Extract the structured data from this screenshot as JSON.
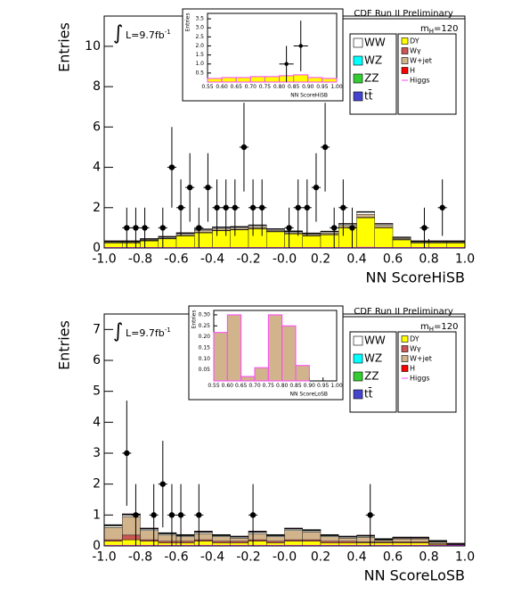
{
  "chart_data": [
    {
      "type": "histogram",
      "header": "CDF Run II Preliminary",
      "mass_label": {
        "symbol": "m",
        "subscript": "H",
        "text": "=120"
      },
      "lumi": {
        "integral": "∫",
        "text": "L=9.7fb",
        "superscript": "-1"
      },
      "x_label": "NN ScoreHiSB",
      "y_label": "Entries",
      "xlim": [
        -1,
        1
      ],
      "ylim": [
        0,
        11.5
      ],
      "xticks": [
        {
          "value": -1,
          "label": "-1.0"
        },
        {
          "value": -0.8,
          "label": "-0.8"
        },
        {
          "value": -0.6,
          "label": "-0.6"
        },
        {
          "value": -0.4,
          "label": "-0.4"
        },
        {
          "value": -0.2,
          "label": "-0.2"
        },
        {
          "value": 0,
          "label": "-0.0"
        },
        0.2,
        0.4,
        0.6,
        0.8,
        {
          "value": 1,
          "label": "1.0"
        }
      ],
      "yticks": [
        0,
        2,
        4,
        6,
        8,
        10
      ],
      "bins": [
        -1,
        -0.9,
        -0.8,
        -0.7,
        -0.6,
        -0.5,
        -0.4,
        -0.3,
        -0.2,
        -0.1,
        0,
        0.1,
        0.2,
        0.3,
        0.4,
        0.5,
        0.6,
        0.7,
        0.8,
        0.9,
        1
      ],
      "series": [
        {
          "name": "WW",
          "color": "#ffffff",
          "values": [
            0.03,
            0.03,
            0.03,
            0.04,
            0.05,
            0.06,
            0.06,
            0.05,
            0.06,
            0.05,
            0.05,
            0.04,
            0.05,
            0.06,
            0.1,
            0.06,
            0.04,
            0.03,
            0.03,
            0.03
          ]
        },
        {
          "name": "WZ",
          "color": "#00ffff",
          "values": [
            0.01,
            0.01,
            0.01,
            0.01,
            0.01,
            0.01,
            0.01,
            0.01,
            0.01,
            0.01,
            0.01,
            0.01,
            0.01,
            0.01,
            0.01,
            0.01,
            0.01,
            0.01,
            0.01,
            0.01
          ]
        },
        {
          "name": "ZZ",
          "color": "#33cc33",
          "values": [
            0.01,
            0.01,
            0.01,
            0.01,
            0.01,
            0.01,
            0.01,
            0.01,
            0.01,
            0.01,
            0.01,
            0.01,
            0.01,
            0.01,
            0.01,
            0.01,
            0.01,
            0.01,
            0.01,
            0.01
          ]
        },
        {
          "name": "tt̄",
          "color": "#4444cc",
          "values": [
            0.01,
            0.01,
            0.01,
            0.01,
            0.01,
            0.01,
            0.01,
            0.01,
            0.01,
            0.01,
            0.01,
            0.01,
            0.01,
            0.01,
            0.01,
            0.01,
            0.01,
            0.01,
            0.01,
            0.01
          ]
        },
        {
          "name": "DY",
          "color": "#ffff00",
          "values": [
            0.25,
            0.25,
            0.35,
            0.45,
            0.6,
            0.75,
            0.85,
            0.9,
            0.95,
            0.8,
            0.7,
            0.6,
            0.65,
            1.0,
            1.5,
            1.0,
            0.4,
            0.25,
            0.25,
            0.25
          ]
        },
        {
          "name": "Wγ",
          "color": "#cc5555",
          "values": [
            0.02,
            0.02,
            0.02,
            0.02,
            0.02,
            0.02,
            0.02,
            0.02,
            0.02,
            0.02,
            0.02,
            0.02,
            0.02,
            0.02,
            0.02,
            0.02,
            0.02,
            0.02,
            0.02,
            0.02
          ]
        },
        {
          "name": "W+jet",
          "color": "#d2b48c",
          "values": [
            0.02,
            0.02,
            0.03,
            0.03,
            0.05,
            0.08,
            0.08,
            0.06,
            0.08,
            0.05,
            0.04,
            0.05,
            0.08,
            0.1,
            0.15,
            0.1,
            0.05,
            0.02,
            0.02,
            0.02
          ]
        },
        {
          "name": "H",
          "color": "#ff0000",
          "values": [
            0.01,
            0.01,
            0.01,
            0.01,
            0.01,
            0.01,
            0.01,
            0.01,
            0.01,
            0.01,
            0.01,
            0.01,
            0.01,
            0.01,
            0.01,
            0.01,
            0.01,
            0.01,
            0.01,
            0.01
          ]
        },
        {
          "name": "Higgs",
          "color": "#ff44ff",
          "line": true,
          "values": [
            0.01,
            0.01,
            0.01,
            0.01,
            0.01,
            0.01,
            0.01,
            0.01,
            0.01,
            0.01,
            0.01,
            0.01,
            0.01,
            0.01,
            0.02,
            0.01,
            0.01,
            0.01,
            0.01,
            0.01
          ]
        }
      ],
      "points": {
        "x": [
          -0.875,
          -0.825,
          -0.775,
          -0.675,
          -0.625,
          -0.575,
          -0.525,
          -0.475,
          -0.425,
          -0.375,
          -0.325,
          -0.275,
          -0.225,
          -0.175,
          -0.125,
          0.025,
          0.075,
          0.125,
          0.175,
          0.225,
          0.275,
          0.325,
          0.375,
          0.775,
          0.875
        ],
        "y": [
          1,
          1,
          1,
          1,
          4,
          2,
          3,
          1,
          3,
          2,
          2,
          2,
          5,
          2,
          2,
          1,
          2,
          2,
          3,
          5,
          1,
          2,
          1,
          1,
          2
        ],
        "yerr": [
          1,
          1,
          1,
          1,
          2,
          1.4,
          1.7,
          1,
          1.7,
          1.4,
          1.4,
          1.4,
          2.2,
          1.4,
          1.4,
          1,
          1.4,
          1.4,
          1.7,
          2.2,
          1,
          1.4,
          1,
          1,
          1.4
        ]
      },
      "inset": {
        "x_label": "NN ScoreHiSB",
        "y_label": "Entries",
        "color": "#ffff00",
        "edge": "#ff44ff",
        "xlim": [
          0.55,
          1
        ],
        "ylim": [
          0,
          3.8
        ],
        "xticks": [
          0.55,
          {
            "value": 0.6,
            "label": "0.60"
          },
          0.65,
          {
            "value": 0.7,
            "label": "0.70"
          },
          0.75,
          {
            "value": 0.8,
            "label": "0.80"
          },
          0.85,
          {
            "value": 0.9,
            "label": "0.90"
          },
          0.95,
          {
            "value": 1,
            "label": "1.00"
          }
        ],
        "yticks": [
          0.5,
          {
            "value": 1,
            "label": "1.0"
          },
          1.5,
          {
            "value": 2,
            "label": "2.0"
          },
          2.5,
          {
            "value": 3,
            "label": "3.0"
          },
          3.5
        ],
        "bins": [
          0.55,
          0.6,
          0.65,
          0.7,
          0.75,
          0.8,
          0.85,
          0.9,
          0.95,
          1
        ],
        "values": [
          0.2,
          0.25,
          0.25,
          0.3,
          0.3,
          0.35,
          0.4,
          0.25,
          0.2
        ],
        "points": {
          "x": [
            0.825,
            0.875
          ],
          "y": [
            1,
            2
          ],
          "yerr": [
            1,
            1.4
          ]
        }
      }
    },
    {
      "type": "histogram",
      "header": "CDF Run II Preliminary",
      "mass_label": {
        "symbol": "m",
        "subscript": "H",
        "text": "=120"
      },
      "lumi": {
        "integral": "∫",
        "text": "L=9.7fb",
        "superscript": "-1"
      },
      "x_label": "NN ScoreLoSB",
      "y_label": "Entries",
      "xlim": [
        -1,
        1
      ],
      "ylim": [
        0,
        7.5
      ],
      "xticks": [
        {
          "value": -1,
          "label": "-1.0"
        },
        {
          "value": -0.8,
          "label": "-0.8"
        },
        {
          "value": -0.6,
          "label": "-0.6"
        },
        {
          "value": -0.4,
          "label": "-0.4"
        },
        {
          "value": -0.2,
          "label": "-0.2"
        },
        {
          "value": 0,
          "label": "-0.0"
        },
        0.2,
        0.4,
        0.6,
        0.8,
        {
          "value": 1,
          "label": "1.0"
        }
      ],
      "yticks": [
        0,
        1,
        2,
        3,
        4,
        5,
        6,
        7
      ],
      "bins": [
        -1,
        -0.9,
        -0.8,
        -0.7,
        -0.6,
        -0.5,
        -0.4,
        -0.3,
        -0.2,
        -0.1,
        0,
        0.1,
        0.2,
        0.3,
        0.4,
        0.5,
        0.6,
        0.7,
        0.8,
        0.9,
        1
      ],
      "series": [
        {
          "name": "WW",
          "color": "#ffffff",
          "values": [
            0.05,
            0.05,
            0.04,
            0.04,
            0.03,
            0.04,
            0.03,
            0.03,
            0.04,
            0.03,
            0.04,
            0.04,
            0.03,
            0.03,
            0.03,
            0.02,
            0.02,
            0.02,
            0.02,
            0.01
          ]
        },
        {
          "name": "WZ",
          "color": "#00ffff",
          "values": [
            0.01,
            0.01,
            0.01,
            0.01,
            0.01,
            0.01,
            0.01,
            0.01,
            0.01,
            0.01,
            0.01,
            0.01,
            0.01,
            0.01,
            0.01,
            0.01,
            0.01,
            0.01,
            0.01,
            0.01
          ]
        },
        {
          "name": "ZZ",
          "color": "#33cc33",
          "values": [
            0.01,
            0.01,
            0.01,
            0.01,
            0.01,
            0.01,
            0.01,
            0.01,
            0.01,
            0.01,
            0.01,
            0.01,
            0.01,
            0.01,
            0.01,
            0.01,
            0.01,
            0.01,
            0.01,
            0.01
          ]
        },
        {
          "name": "tt̄",
          "color": "#4444cc",
          "values": [
            0.01,
            0.01,
            0.01,
            0.01,
            0.01,
            0.01,
            0.01,
            0.01,
            0.01,
            0.01,
            0.01,
            0.01,
            0.01,
            0.01,
            0.01,
            0.01,
            0.01,
            0.01,
            0.01,
            0.01
          ]
        },
        {
          "name": "DY",
          "color": "#ffff00",
          "values": [
            0.15,
            0.2,
            0.15,
            0.1,
            0.1,
            0.15,
            0.1,
            0.1,
            0.15,
            0.1,
            0.15,
            0.15,
            0.1,
            0.1,
            0.1,
            0.1,
            0.1,
            0.1,
            0.05,
            0.02
          ]
        },
        {
          "name": "Wγ",
          "color": "#cc5555",
          "values": [
            0.05,
            0.15,
            0.05,
            0.05,
            0.05,
            0.05,
            0.05,
            0.05,
            0.05,
            0.05,
            0.05,
            0.05,
            0.05,
            0.05,
            0.03,
            0.03,
            0.03,
            0.03,
            0.02,
            0.01
          ]
        },
        {
          "name": "W+jet",
          "color": "#d2b48c",
          "values": [
            0.4,
            0.6,
            0.3,
            0.2,
            0.15,
            0.2,
            0.15,
            0.1,
            0.2,
            0.15,
            0.3,
            0.25,
            0.15,
            0.1,
            0.15,
            0.05,
            0.1,
            0.1,
            0.05,
            0.01
          ]
        },
        {
          "name": "H",
          "color": "#ff0000",
          "values": [
            0.01,
            0.01,
            0.01,
            0.01,
            0.01,
            0.01,
            0.01,
            0.01,
            0.01,
            0.01,
            0.01,
            0.01,
            0.01,
            0.01,
            0.01,
            0.01,
            0.01,
            0.01,
            0.01,
            0.01
          ]
        },
        {
          "name": "Higgs",
          "color": "#ff44ff",
          "line": true,
          "values": [
            0.01,
            0.01,
            0.01,
            0.01,
            0.01,
            0.01,
            0.01,
            0.01,
            0.01,
            0.01,
            0.01,
            0.01,
            0.01,
            0.01,
            0.01,
            0.01,
            0.01,
            0.01,
            0.01,
            0.01
          ]
        }
      ],
      "points": {
        "x": [
          -0.875,
          -0.825,
          -0.725,
          -0.675,
          -0.625,
          -0.575,
          -0.475,
          -0.175,
          0.475
        ],
        "y": [
          3,
          1,
          1,
          2,
          1,
          1,
          1,
          1,
          1
        ],
        "yerr": [
          1.7,
          1,
          1,
          1.4,
          1,
          1,
          1,
          1,
          1
        ]
      },
      "inset": {
        "x_label": "NN ScoreLoSB",
        "y_label": "Entries",
        "color": "#d2b48c",
        "edge": "#ff44ff",
        "xlim": [
          0.55,
          1
        ],
        "ylim": [
          0,
          0.32
        ],
        "xticks": [
          0.55,
          {
            "value": 0.6,
            "label": "0.60"
          },
          0.65,
          {
            "value": 0.7,
            "label": "0.70"
          },
          0.75,
          {
            "value": 0.8,
            "label": "0.80"
          },
          0.85,
          {
            "value": 0.9,
            "label": "0.90"
          },
          0.95,
          {
            "value": 1,
            "label": "1.00"
          }
        ],
        "yticks": [
          0.05,
          {
            "value": 0.1,
            "label": "0.10"
          },
          0.15,
          {
            "value": 0.2,
            "label": "0.20"
          },
          0.25,
          {
            "value": 0.3,
            "label": "0.30"
          }
        ],
        "bins": [
          0.55,
          0.6,
          0.65,
          0.7,
          0.75,
          0.8,
          0.85,
          0.9,
          0.95,
          1
        ],
        "values": [
          0.22,
          0.3,
          0.02,
          0.06,
          0.3,
          0.25,
          0.07,
          0,
          0
        ],
        "points": {
          "x": [],
          "y": [],
          "yerr": []
        }
      }
    }
  ]
}
